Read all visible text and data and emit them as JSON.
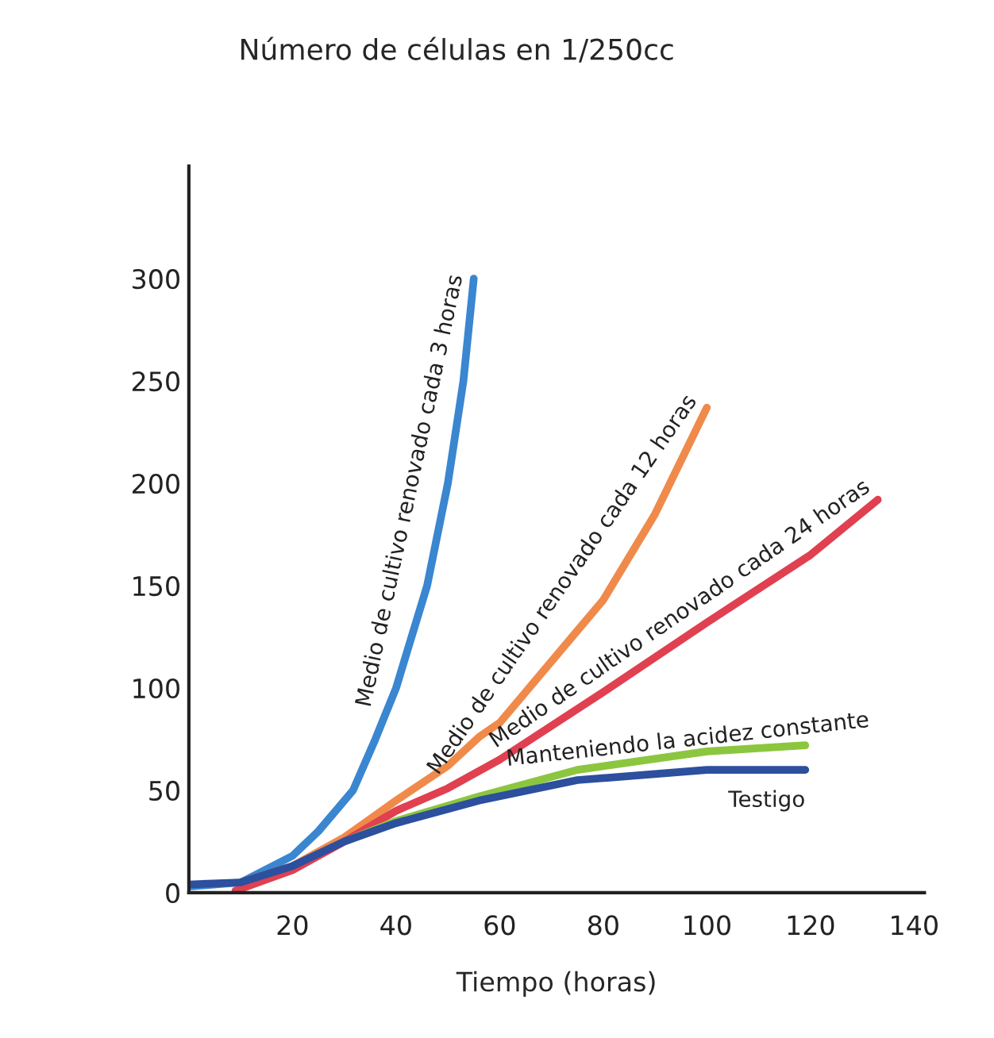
{
  "chart_data": {
    "type": "line",
    "title": "Número de células en 1/250cc",
    "xlabel": "Tiempo (horas)",
    "xlim": [
      0,
      142
    ],
    "xticks": [
      20,
      40,
      60,
      80,
      100,
      120,
      140
    ],
    "ylim": [
      0,
      355
    ],
    "yticks": [
      0,
      50,
      100,
      150,
      200,
      250,
      300
    ],
    "grid": false,
    "legend": false,
    "marker": "none",
    "line_style": "solid",
    "series": [
      {
        "name": "Medio de cultivo renovado cada 3 horas",
        "color": "#3a86d0",
        "x": [
          0,
          10,
          20,
          25,
          31.7,
          36,
          40,
          46,
          50,
          53,
          55
        ],
        "values": [
          3,
          5,
          18,
          30,
          50,
          75,
          100,
          150,
          200,
          250,
          300
        ]
      },
      {
        "name": "Medio de cultivo renovado cada 12 horas",
        "color": "#f08a4b",
        "x": [
          10,
          20,
          30,
          40,
          50,
          56,
          60,
          75,
          80,
          90,
          100
        ],
        "values": [
          5,
          13,
          27,
          45,
          62,
          76,
          83,
          128,
          143,
          185,
          237
        ]
      },
      {
        "name": "Medio de cultivo renovado cada 24 horas",
        "color": "#e0404f",
        "x": [
          9,
          20,
          30,
          40,
          50,
          60,
          80,
          100,
          120,
          133
        ],
        "values": [
          1,
          11,
          25,
          40,
          51,
          65,
          98,
          132,
          165,
          192
        ]
      },
      {
        "name": "Manteniendo la acidez constante",
        "color": "#8cc63f",
        "x": [
          30,
          40,
          56,
          75,
          100,
          119
        ],
        "values": [
          25,
          35,
          47,
          60,
          69,
          72
        ]
      },
      {
        "name": "Testigo",
        "color": "#2c4f9e",
        "x": [
          0,
          10,
          20,
          30,
          40,
          56,
          75,
          100,
          119
        ],
        "values": [
          4,
          5,
          13,
          25,
          34,
          45,
          55,
          60,
          60
        ]
      }
    ]
  }
}
